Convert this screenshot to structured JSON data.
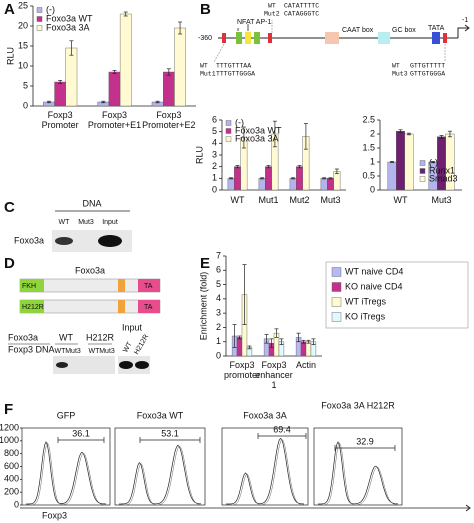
{
  "panels": [
    "A",
    "B",
    "C",
    "D",
    "E",
    "F"
  ],
  "chart_data": [
    {
      "type": "bar",
      "ylabel": "RLU",
      "categories": [
        "Foxp3 Promoter",
        "Foxp3 Promoter+E1",
        "Foxp3 Promoter+E2"
      ],
      "ylim": [
        0,
        25
      ],
      "yticks": [
        0,
        5,
        10,
        15,
        20,
        25
      ],
      "legend": "upper left",
      "series": [
        {
          "name": "(-)",
          "color": "#b4b4ec",
          "values": [
            1,
            1,
            1
          ],
          "errors": [
            0.2,
            0.2,
            0.2
          ]
        },
        {
          "name": "Foxo3a WT",
          "color": "#c4318c",
          "values": [
            6,
            8.5,
            8.5
          ],
          "errors": [
            0.4,
            0.4,
            0.8
          ]
        },
        {
          "name": "Foxo3a 3A",
          "color": "#fffad2",
          "values": [
            14.5,
            23,
            19.5
          ],
          "errors": [
            1.8,
            0.5,
            1.5
          ]
        }
      ]
    },
    {
      "type": "bar",
      "ylabel": "RLU",
      "categories": [
        "WT",
        "Mut1",
        "Mut2",
        "Mut3"
      ],
      "ylim": [
        0,
        6
      ],
      "yticks": [
        0,
        1,
        2,
        3,
        4,
        5,
        6
      ],
      "legend": "upper left",
      "series": [
        {
          "name": "(-)",
          "color": "#b4b4ec",
          "values": [
            1,
            1,
            1,
            1
          ],
          "errors": [
            0.05,
            0.05,
            0.05,
            0.05
          ]
        },
        {
          "name": "Foxo3a WT",
          "color": "#c4318c",
          "values": [
            2,
            2,
            2,
            1
          ],
          "errors": [
            0.1,
            0.1,
            0.1,
            0.05
          ]
        },
        {
          "name": "Foxo3a 3A",
          "color": "#fffad2",
          "values": [
            4.5,
            4.8,
            4.6,
            1.6
          ],
          "errors": [
            0.9,
            1.1,
            1.1,
            0.2
          ]
        }
      ]
    },
    {
      "type": "bar",
      "categories": [
        "WT",
        "Mut3"
      ],
      "ylim": [
        0,
        2.5
      ],
      "yticks": [
        0,
        0.5,
        1,
        1.5,
        2,
        2.5
      ],
      "legend": "lower right",
      "series": [
        {
          "name": "(-)",
          "color": "#b4b4ec",
          "values": [
            1,
            1
          ],
          "errors": [
            0.02,
            0.02
          ]
        },
        {
          "name": "Runx1",
          "color": "#6e1f6e",
          "values": [
            2.1,
            1.9
          ],
          "errors": [
            0.05,
            0.05
          ]
        },
        {
          "name": "Smad3",
          "color": "#fffad2",
          "values": [
            2,
            2
          ],
          "errors": [
            0.03,
            0.1
          ]
        }
      ]
    },
    {
      "type": "bar",
      "ylabel": "Enrichment (fold)",
      "categories": [
        "Foxp3 promoter",
        "Foxp3 enhancer 1",
        "Actin"
      ],
      "ylim": [
        0,
        7
      ],
      "yticks": [
        0,
        1,
        2,
        3,
        4,
        5,
        6,
        7
      ],
      "legend": "outside right",
      "series": [
        {
          "name": "WT naive CD4",
          "color": "#b8b8f2",
          "values": [
            1.4,
            1.2,
            1.3
          ],
          "errors": [
            0.8,
            0.3,
            0.3
          ]
        },
        {
          "name": "KO naive CD4",
          "color": "#c4318c",
          "values": [
            1.3,
            0.9,
            1.0
          ],
          "errors": [
            0.1,
            0.3,
            0.1
          ]
        },
        {
          "name": "WT iTregs",
          "color": "#fffad2",
          "values": [
            4.3,
            1.6,
            1.0
          ],
          "errors": [
            2.1,
            0.3,
            0.1
          ]
        },
        {
          "name": "KO iTregs",
          "color": "#e2f8ff",
          "values": [
            0.6,
            1.0,
            1.0
          ],
          "errors": [
            0.1,
            0.2,
            0.2
          ]
        }
      ]
    }
  ],
  "promoter": {
    "start": "-360",
    "end": "-1",
    "sites": "NFAT AP-1",
    "caat": "CAAT box",
    "gc": "GC box",
    "tata": "TATA",
    "wt1": "WT",
    "seq_wt1": "TTTGTTTAA",
    "mut1": "Mut1",
    "seq_mut1": "TTTGTTGGGA",
    "wt2": "WT",
    "seq_wt2": "CATATTTTC",
    "mut2": "Mut2",
    "seq_mut2": "CATAGGGTC",
    "wt3": "WT",
    "seq_wt3": "GTTGTTTTT",
    "mut3": "Mut3",
    "seq_mut3": "GTTGTGGGA"
  },
  "gel_c": {
    "header": "DNA",
    "lanes": [
      "WT",
      "Mut3",
      "Input"
    ],
    "row": "Foxo3a"
  },
  "domains": {
    "title": "Foxo3a",
    "wt_domain": "FKH",
    "mut_domain": "H212R",
    "ta": "TA"
  },
  "gel_d": {
    "rows": [
      "Foxo3a",
      "Foxp3 DNA"
    ],
    "groups": [
      "WT",
      "H212R"
    ],
    "input": "Input",
    "sub": [
      "WT",
      "Mut3",
      "WT",
      "Mut3"
    ],
    "input_lanes": [
      "WT",
      "H212R"
    ]
  },
  "flow": {
    "panels": [
      {
        "title": "GFP",
        "gate": 36.1
      },
      {
        "title": "Foxo3a WT",
        "gate": 53.1
      },
      {
        "title": "Foxo3a 3A",
        "gate": 69.4
      },
      {
        "title": "Foxo3a 3A H212R",
        "gate": 32.9
      }
    ],
    "ylim": [
      0,
      1200
    ],
    "yticks": [
      0,
      200,
      400,
      600,
      800,
      1000,
      1200
    ],
    "xlabel": "Foxp3"
  }
}
